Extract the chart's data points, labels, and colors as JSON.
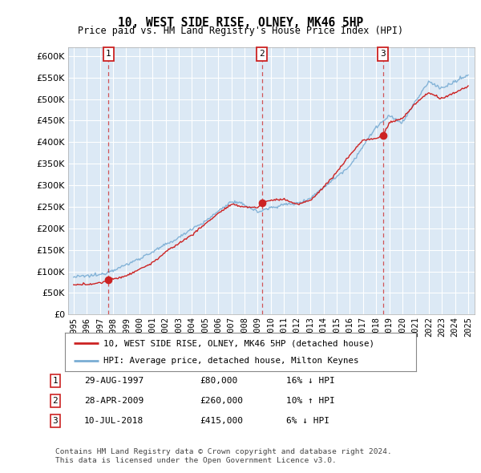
{
  "title": "10, WEST SIDE RISE, OLNEY, MK46 5HP",
  "subtitle": "Price paid vs. HM Land Registry's House Price Index (HPI)",
  "transactions": [
    {
      "label": "1",
      "date": "29-AUG-1997",
      "price": 80000,
      "year": 1997.66,
      "hpi_pct": "16% ↓ HPI"
    },
    {
      "label": "2",
      "date": "28-APR-2009",
      "price": 260000,
      "year": 2009.32,
      "hpi_pct": "10% ↑ HPI"
    },
    {
      "label": "3",
      "date": "10-JUL-2018",
      "price": 415000,
      "year": 2018.52,
      "hpi_pct": "6% ↓ HPI"
    }
  ],
  "legend_line1": "10, WEST SIDE RISE, OLNEY, MK46 5HP (detached house)",
  "legend_line2": "HPI: Average price, detached house, Milton Keynes",
  "footer1": "Contains HM Land Registry data © Crown copyright and database right 2024.",
  "footer2": "This data is licensed under the Open Government Licence v3.0.",
  "ylim": [
    0,
    620000
  ],
  "xlim_left": 1994.6,
  "xlim_right": 2025.5,
  "yticks": [
    0,
    50000,
    100000,
    150000,
    200000,
    250000,
    300000,
    350000,
    400000,
    450000,
    500000,
    550000,
    600000
  ],
  "ytick_labels": [
    "£0",
    "£50K",
    "£100K",
    "£150K",
    "£200K",
    "£250K",
    "£300K",
    "£350K",
    "£400K",
    "£450K",
    "£500K",
    "£550K",
    "£600K"
  ],
  "xticks": [
    1995,
    1996,
    1997,
    1998,
    1999,
    2000,
    2001,
    2002,
    2003,
    2004,
    2005,
    2006,
    2007,
    2008,
    2009,
    2010,
    2011,
    2012,
    2013,
    2014,
    2015,
    2016,
    2017,
    2018,
    2019,
    2020,
    2021,
    2022,
    2023,
    2024,
    2025
  ],
  "background_color": "#dce9f5",
  "red_color": "#cc2222",
  "blue_color": "#7aadd4",
  "grid_color": "#ffffff",
  "hpi_anchors_x": [
    1995,
    1997,
    1999,
    2000,
    2001,
    2002,
    2003,
    2004,
    2005,
    2006,
    2007,
    2008,
    2009,
    2010,
    2011,
    2012,
    2013,
    2014,
    2015,
    2016,
    2017,
    2018,
    2019,
    2020,
    2021,
    2022,
    2023,
    2024,
    2025
  ],
  "hpi_anchors_y": [
    87000,
    92000,
    115000,
    130000,
    145000,
    162000,
    178000,
    200000,
    215000,
    240000,
    262000,
    255000,
    238000,
    248000,
    255000,
    258000,
    270000,
    295000,
    320000,
    345000,
    390000,
    435000,
    460000,
    445000,
    495000,
    540000,
    525000,
    540000,
    555000
  ],
  "prop_anchors_x": [
    1995,
    1997.0,
    1997.66,
    1998,
    1999,
    2000,
    2001,
    2002,
    2003,
    2004,
    2005,
    2006,
    2007,
    2008,
    2009.0,
    2009.32,
    2010,
    2011,
    2012,
    2013,
    2014,
    2015,
    2016,
    2017,
    2018.0,
    2018.52,
    2019,
    2020,
    2021,
    2022,
    2023,
    2024,
    2025
  ],
  "prop_anchors_y": [
    68000,
    73000,
    80000,
    82000,
    90000,
    105000,
    120000,
    145000,
    165000,
    185000,
    210000,
    235000,
    255000,
    250000,
    248000,
    260000,
    265000,
    268000,
    255000,
    265000,
    295000,
    330000,
    370000,
    405000,
    408000,
    415000,
    445000,
    455000,
    490000,
    515000,
    500000,
    515000,
    530000
  ]
}
